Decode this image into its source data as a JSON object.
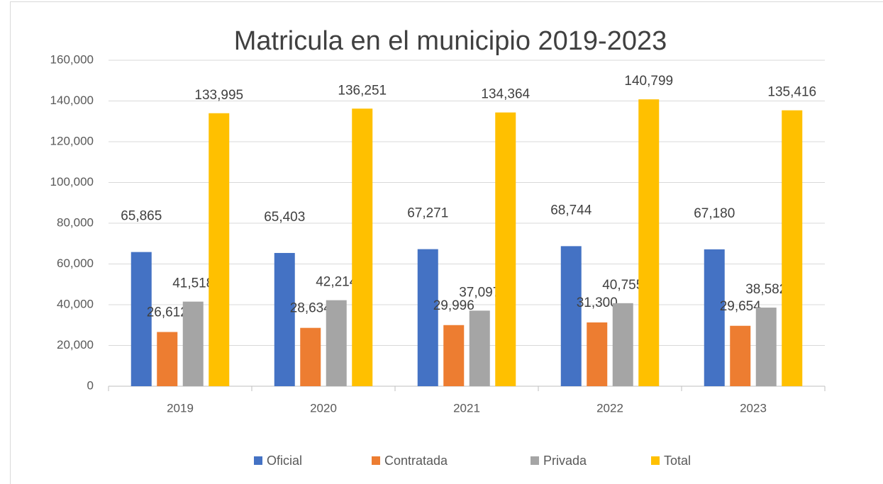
{
  "chart_data": {
    "type": "bar",
    "title": "Matricula en el municipio 2019-2023",
    "categories": [
      "2019",
      "2020",
      "2021",
      "2022",
      "2023"
    ],
    "series": [
      {
        "name": "Oficial",
        "color": "#4472c4",
        "values": [
          65865,
          65403,
          67271,
          68744,
          67180
        ],
        "value_labels": [
          "65,865",
          "65,403",
          "67,271",
          "68,744",
          "67,180"
        ]
      },
      {
        "name": "Contratada",
        "color": "#ed7d31",
        "values": [
          26612,
          28634,
          29996,
          31300,
          29654
        ],
        "value_labels": [
          "26,612",
          "28,634",
          "29,996",
          "31,300",
          "29,654"
        ]
      },
      {
        "name": "Privada",
        "color": "#a5a5a5",
        "values": [
          41518,
          42214,
          37097,
          40755,
          38582
        ],
        "value_labels": [
          "41,518",
          "42,214",
          "37,097",
          "40,755",
          "38,582"
        ]
      },
      {
        "name": "Total",
        "color": "#ffc000",
        "values": [
          133995,
          136251,
          134364,
          140799,
          135416
        ],
        "value_labels": [
          "133,995",
          "136,251",
          "134,364",
          "140,799",
          "135,416"
        ]
      }
    ],
    "ylim": [
      0,
      160000
    ],
    "yticks": [
      0,
      {
        "value": 20000,
        "label": "20,000"
      },
      {
        "value": 40000,
        "label": "40,000"
      },
      {
        "value": 60000,
        "label": "60,000"
      },
      {
        "value": 80000,
        "label": "80,000"
      },
      {
        "value": 100000,
        "label": "100,000"
      },
      {
        "value": 120000,
        "label": "120,000"
      },
      {
        "value": 140000,
        "label": "140,000"
      },
      {
        "value": 160000,
        "label": "160,000"
      }
    ],
    "grid": true,
    "legend": "bottom"
  }
}
